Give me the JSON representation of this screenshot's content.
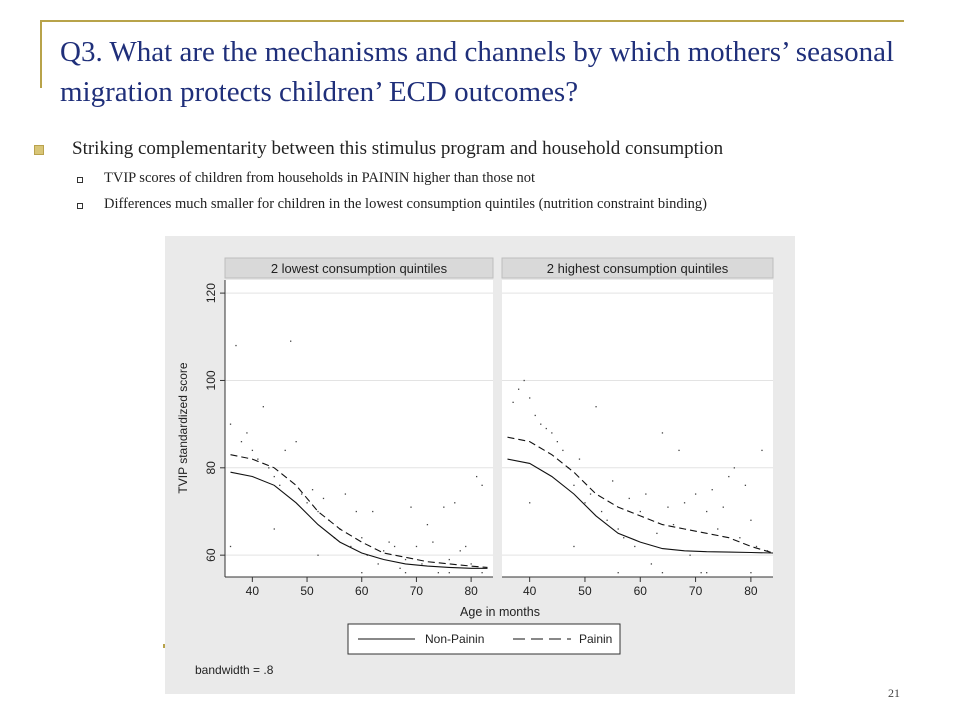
{
  "slide": {
    "title": "Q3. What are the mechanisms and channels by which mothers’ seasonal migration protects children’ ECD outcomes?",
    "bullet": "Striking complementarity between this stimulus program and household consumption",
    "subbullets": [
      "TVIP scores of children from households in PAININ higher than those not",
      "Differences much smaller for children in the lowest consumption quintiles (nutrition constraint binding)"
    ],
    "page_number": "21"
  },
  "colors": {
    "accent": "#b8a34a",
    "title": "#1f2f7a",
    "chart_bg": "#eaeaea",
    "strip": "#d9d9d9"
  },
  "chart_data": {
    "type": "line",
    "ylabel": "TVIP standardized score",
    "xlabel": "Age in months",
    "xlim": [
      35,
      84
    ],
    "ylim": [
      55,
      123
    ],
    "xticks": [
      40,
      50,
      60,
      70,
      80
    ],
    "yticks": [
      60,
      80,
      100,
      120
    ],
    "note": "bandwidth = .8",
    "legend": {
      "placement": "bottom",
      "entries": [
        "Non-Painin",
        "Painin"
      ]
    },
    "panels": [
      {
        "label": "2 lowest consumption quintiles",
        "series": [
          {
            "name": "Non-Painin",
            "style": "solid",
            "x": [
              36,
              40,
              44,
              48,
              52,
              56,
              60,
              64,
              68,
              72,
              76,
              80,
              83
            ],
            "y": [
              79,
              78,
              76,
              72,
              67,
              63,
              60.5,
              59,
              58,
              57.5,
              57.2,
              57,
              57
            ]
          },
          {
            "name": "Painin",
            "style": "dashed",
            "x": [
              36,
              40,
              44,
              48,
              52,
              56,
              60,
              64,
              68,
              72,
              76,
              80,
              83
            ],
            "y": [
              83,
              82,
              80,
              76,
              70,
              66,
              63,
              60.5,
              59.5,
              58.5,
              58,
              57.5,
              57.2
            ]
          }
        ],
        "points": [
          [
            36,
            90
          ],
          [
            37,
            108
          ],
          [
            38,
            86
          ],
          [
            39,
            88
          ],
          [
            40,
            84
          ],
          [
            41,
            82
          ],
          [
            42,
            94
          ],
          [
            43,
            80
          ],
          [
            44,
            78
          ],
          [
            45,
            76
          ],
          [
            46,
            84
          ],
          [
            47,
            109
          ],
          [
            48,
            86
          ],
          [
            49,
            74
          ],
          [
            50,
            72
          ],
          [
            51,
            75
          ],
          [
            52,
            70
          ],
          [
            53,
            73
          ],
          [
            54,
            68
          ],
          [
            55,
            64
          ],
          [
            56,
            66
          ],
          [
            57,
            74
          ],
          [
            58,
            62
          ],
          [
            59,
            70
          ],
          [
            60,
            64
          ],
          [
            61,
            60
          ],
          [
            62,
            70
          ],
          [
            63,
            58
          ],
          [
            64,
            61
          ],
          [
            65,
            63
          ],
          [
            66,
            62
          ],
          [
            67,
            57
          ],
          [
            68,
            59
          ],
          [
            69,
            71
          ],
          [
            70,
            62
          ],
          [
            71,
            58
          ],
          [
            72,
            67
          ],
          [
            73,
            63
          ],
          [
            74,
            56
          ],
          [
            75,
            71
          ],
          [
            76,
            59
          ],
          [
            77,
            72
          ],
          [
            78,
            61
          ],
          [
            79,
            62
          ],
          [
            80,
            58
          ],
          [
            81,
            78
          ],
          [
            82,
            76
          ],
          [
            36,
            62
          ],
          [
            44,
            66
          ],
          [
            52,
            60
          ],
          [
            60,
            56
          ],
          [
            68,
            56
          ],
          [
            76,
            56
          ],
          [
            82,
            56
          ]
        ]
      },
      {
        "label": "2 highest consumption quintiles",
        "series": [
          {
            "name": "Non-Painin",
            "style": "solid",
            "x": [
              36,
              40,
              44,
              48,
              52,
              56,
              60,
              64,
              68,
              72,
              76,
              80,
              84
            ],
            "y": [
              82,
              81,
              78,
              74,
              69,
              65,
              63,
              61.5,
              61,
              60.8,
              60.7,
              60.6,
              60.5
            ]
          },
          {
            "name": "Painin",
            "style": "dashed",
            "x": [
              36,
              40,
              44,
              48,
              52,
              56,
              60,
              64,
              68,
              72,
              76,
              80,
              84
            ],
            "y": [
              87,
              86,
              83,
              79,
              74,
              71,
              69,
              67,
              66,
              65,
              64,
              62,
              60.5
            ]
          }
        ],
        "points": [
          [
            37,
            95
          ],
          [
            38,
            98
          ],
          [
            39,
            100
          ],
          [
            40,
            96
          ],
          [
            41,
            92
          ],
          [
            42,
            90
          ],
          [
            43,
            89
          ],
          [
            44,
            88
          ],
          [
            45,
            86
          ],
          [
            46,
            84
          ],
          [
            47,
            80
          ],
          [
            48,
            76
          ],
          [
            49,
            82
          ],
          [
            50,
            72
          ],
          [
            51,
            74
          ],
          [
            52,
            94
          ],
          [
            53,
            70
          ],
          [
            54,
            68
          ],
          [
            55,
            77
          ],
          [
            56,
            66
          ],
          [
            57,
            64
          ],
          [
            58,
            73
          ],
          [
            59,
            62
          ],
          [
            60,
            70
          ],
          [
            61,
            74
          ],
          [
            62,
            58
          ],
          [
            63,
            65
          ],
          [
            64,
            88
          ],
          [
            65,
            71
          ],
          [
            66,
            67
          ],
          [
            67,
            84
          ],
          [
            68,
            72
          ],
          [
            69,
            60
          ],
          [
            70,
            74
          ],
          [
            71,
            56
          ],
          [
            72,
            70
          ],
          [
            73,
            75
          ],
          [
            74,
            66
          ],
          [
            75,
            71
          ],
          [
            76,
            78
          ],
          [
            77,
            80
          ],
          [
            78,
            64
          ],
          [
            79,
            76
          ],
          [
            80,
            68
          ],
          [
            81,
            62
          ],
          [
            82,
            84
          ],
          [
            83,
            61
          ],
          [
            40,
            72
          ],
          [
            48,
            62
          ],
          [
            56,
            56
          ],
          [
            64,
            56
          ],
          [
            72,
            56
          ],
          [
            80,
            56
          ]
        ]
      }
    ]
  }
}
